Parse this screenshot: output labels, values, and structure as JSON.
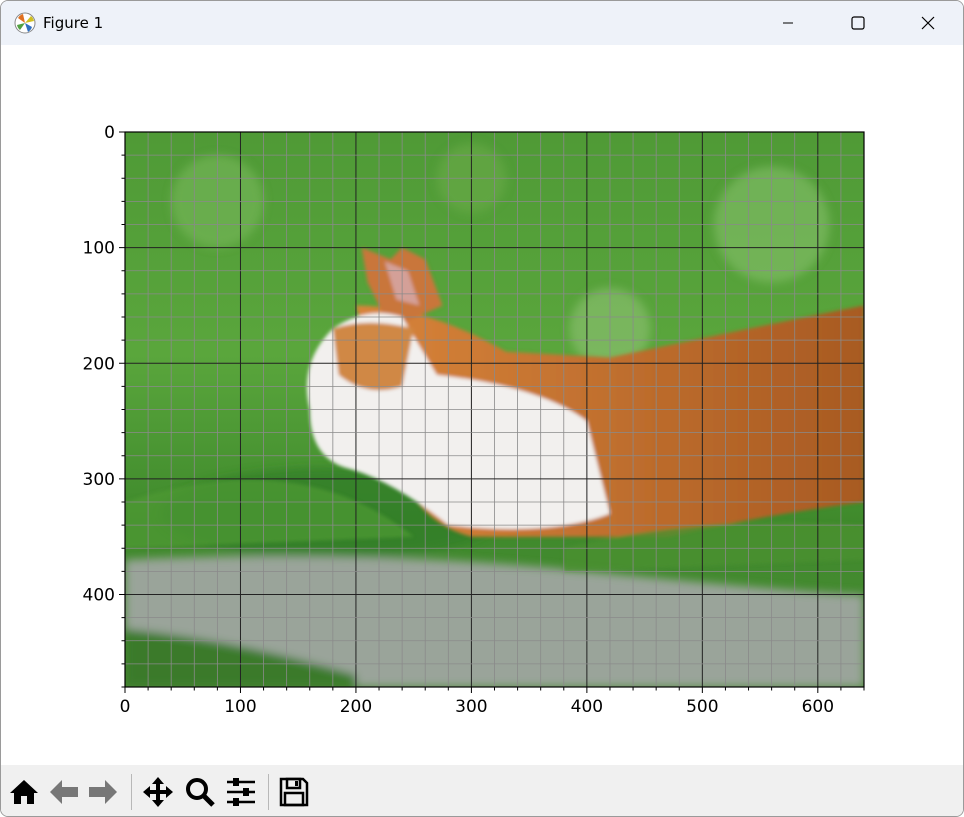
{
  "window": {
    "title": "Figure 1",
    "app_icon": "matplotlib-icon",
    "controls": [
      "minimize",
      "maximize",
      "close"
    ]
  },
  "plot": {
    "image": "photo of orange and white cat lying in green grass behind grey stone ledge",
    "image_size": [
      640,
      480
    ],
    "xticks": [
      "0",
      "100",
      "200",
      "300",
      "400",
      "500",
      "600"
    ],
    "yticks": [
      "0",
      "100",
      "200",
      "300",
      "400"
    ],
    "minor_tick_step": 20,
    "grid": {
      "major": true,
      "minor": true,
      "major_color": "#222222",
      "minor_color": "#8a8a8a"
    }
  },
  "toolbar": {
    "buttons": [
      "home-icon",
      "back-icon",
      "forward-icon",
      "pan-icon",
      "zoom-icon",
      "configure-subplots-icon",
      "save-icon"
    ]
  }
}
